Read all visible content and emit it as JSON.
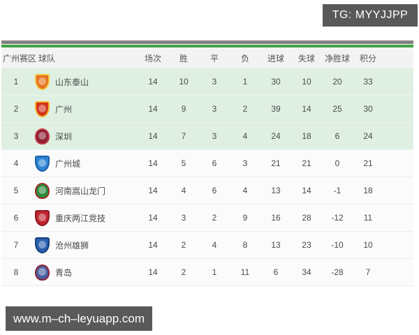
{
  "watermarks": {
    "top": "TG: MYYJJPP",
    "bottom": "www.m–ch–leyuapp.com"
  },
  "colors": {
    "accent_green_bar": "#3fa344",
    "top_gray_bar": "#818181",
    "highlight_row_bg": "#dff0e2",
    "header_row_bg": "#f3f3f3",
    "watermark_bg": "#595959",
    "body_text": "#4a4a4a"
  },
  "table": {
    "headers": [
      "广州赛区",
      "球队",
      "场次",
      "胜",
      "平",
      "负",
      "进球",
      "失球",
      "净胜球",
      "积分"
    ],
    "rows": [
      {
        "rank": "1",
        "team": "山东泰山",
        "stats": [
          "14",
          "10",
          "3",
          "1",
          "30",
          "10",
          "20",
          "33"
        ],
        "highlighted": true,
        "logo": {
          "primary": "#e4731f",
          "secondary": "#f3c53d"
        }
      },
      {
        "rank": "2",
        "team": "广州",
        "stats": [
          "14",
          "9",
          "3",
          "2",
          "39",
          "14",
          "25",
          "30"
        ],
        "highlighted": true,
        "logo": {
          "primary": "#d2321c",
          "secondary": "#f5b52a"
        }
      },
      {
        "rank": "3",
        "team": "深圳",
        "stats": [
          "14",
          "7",
          "3",
          "4",
          "24",
          "18",
          "6",
          "24"
        ],
        "highlighted": true,
        "logo": {
          "primary": "#8e2033",
          "secondary": "#c23a48"
        }
      },
      {
        "rank": "4",
        "team": "广州城",
        "stats": [
          "14",
          "5",
          "6",
          "3",
          "21",
          "21",
          "0",
          "21"
        ],
        "highlighted": false,
        "logo": {
          "primary": "#2e86d4",
          "secondary": "#1b5fa8"
        }
      },
      {
        "rank": "5",
        "team": "河南嵩山龙门",
        "stats": [
          "14",
          "4",
          "6",
          "4",
          "13",
          "14",
          "-1",
          "18"
        ],
        "highlighted": false,
        "logo": {
          "primary": "#2c8a3a",
          "secondary": "#a32a2a"
        }
      },
      {
        "rank": "6",
        "team": "重庆两江竞技",
        "stats": [
          "14",
          "3",
          "2",
          "9",
          "16",
          "28",
          "-12",
          "11"
        ],
        "highlighted": false,
        "logo": {
          "primary": "#c22430",
          "secondary": "#8e1b25"
        }
      },
      {
        "rank": "7",
        "team": "沧州雄狮",
        "stats": [
          "14",
          "2",
          "4",
          "8",
          "13",
          "23",
          "-10",
          "10"
        ],
        "highlighted": false,
        "logo": {
          "primary": "#2a5fae",
          "secondary": "#173f7a"
        }
      },
      {
        "rank": "8",
        "team": "青岛",
        "stats": [
          "14",
          "2",
          "1",
          "11",
          "6",
          "34",
          "-28",
          "7"
        ],
        "highlighted": false,
        "logo": {
          "primary": "#4a5fa0",
          "secondary": "#8e2033"
        }
      }
    ]
  }
}
